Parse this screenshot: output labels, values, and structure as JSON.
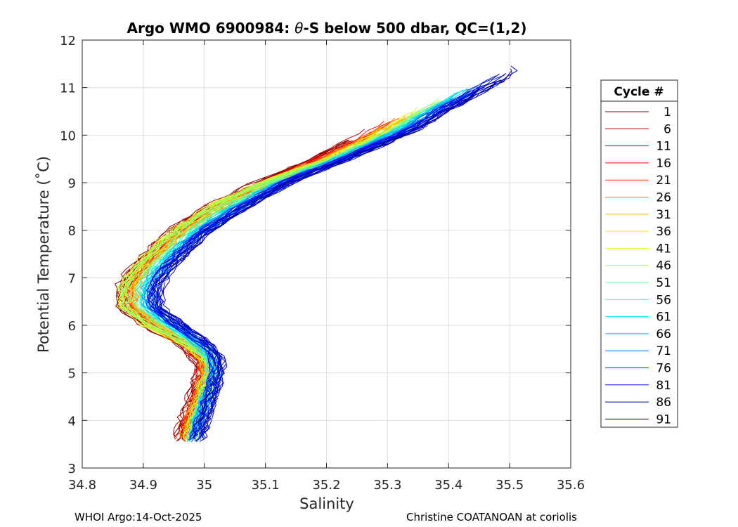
{
  "chart_data": {
    "type": "line",
    "title_prefix": "Argo WMO 6900984: ",
    "title_symbol": "θ",
    "title_suffix": "-S below 500 dbar,  QC=(1,2)",
    "xlabel": "Salinity",
    "ylabel": "Potential Temperature (˚C)",
    "xlim": [
      34.8,
      35.6
    ],
    "ylim": [
      3,
      12
    ],
    "xticks": [
      "34.8",
      "34.9",
      "35",
      "35.1",
      "35.2",
      "35.3",
      "35.4",
      "35.5",
      "35.6"
    ],
    "yticks": [
      "3",
      "4",
      "5",
      "6",
      "7",
      "8",
      "9",
      "10",
      "11",
      "12"
    ],
    "grid": true,
    "legend": {
      "title": "Cycle #",
      "placement": "outside-right",
      "entries": [
        "1",
        "6",
        "11",
        "16",
        "21",
        "26",
        "31",
        "36",
        "41",
        "46",
        "51",
        "56",
        "61",
        "66",
        "71",
        "76",
        "81",
        "86",
        "91"
      ]
    },
    "colormap": [
      "#7f0000",
      "#a80000",
      "#d10000",
      "#fa0000",
      "#ff3300",
      "#ff7000",
      "#ffad00",
      "#ffe500",
      "#d5ff2a",
      "#a0ff5f",
      "#6aff95",
      "#35ffca",
      "#00e5ff",
      "#00a8ff",
      "#0070ff",
      "#0033ff",
      "#0000fa",
      "#0000c8",
      "#00008f"
    ],
    "cycle_count": 91,
    "salinity_shift_early": -0.055,
    "salinity_shift_mid": -0.02,
    "salinity_shift_late": 0.01,
    "reference_profile": {
      "theta": [
        3.55,
        4.0,
        4.5,
        5.0,
        5.3,
        5.6,
        6.0,
        6.4,
        6.8,
        7.2,
        7.6,
        8.0,
        8.5,
        9.0,
        9.5,
        10.0,
        10.5,
        11.0,
        11.3
      ],
      "salinity": [
        34.985,
        34.995,
        35.008,
        35.02,
        35.018,
        35.0,
        34.955,
        34.915,
        34.915,
        34.935,
        34.965,
        35.0,
        35.06,
        35.13,
        35.21,
        35.28,
        35.34,
        35.41,
        35.45
      ]
    }
  },
  "footer": {
    "left": "WHOI Argo:14-Oct-2025",
    "right": "Christine COATANOAN at coriolis"
  }
}
